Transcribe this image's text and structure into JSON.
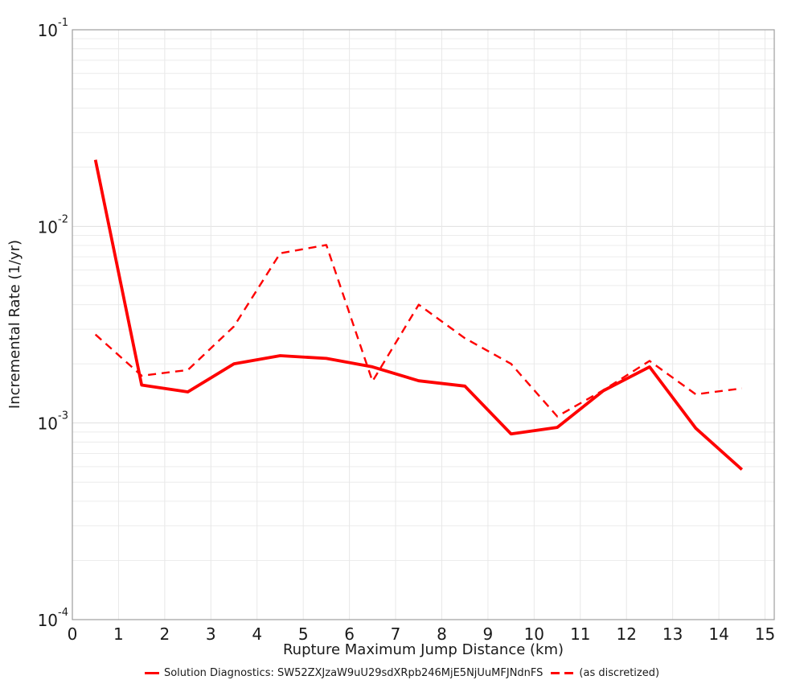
{
  "chart_data": {
    "type": "line",
    "title": "",
    "xlabel": "Rupture Maximum Jump Distance (km)",
    "ylabel": "Incremental Rate (1/yr)",
    "xlim": [
      0,
      15.2
    ],
    "ylim": [
      0.0001,
      0.1
    ],
    "yscale": "log",
    "grid": true,
    "legend_position": "bottom-center",
    "x_ticks": [
      0,
      1,
      2,
      3,
      4,
      5,
      6,
      7,
      8,
      9,
      10,
      11,
      12,
      13,
      14,
      15
    ],
    "y_ticks": [
      {
        "base": "10",
        "exp": "-1",
        "value": 0.1
      },
      {
        "base": "10",
        "exp": "-2",
        "value": 0.01
      },
      {
        "base": "10",
        "exp": "-3",
        "value": 0.001
      },
      {
        "base": "10",
        "exp": "-4",
        "value": 0.0001
      }
    ],
    "x": [
      0.5,
      1.5,
      2.5,
      3.5,
      4.5,
      5.5,
      6.5,
      7.5,
      8.5,
      9.5,
      10.5,
      11.5,
      12.5,
      13.5,
      14.5
    ],
    "series": [
      {
        "name": "Solution Diagnostics: SW52ZXJzaW9uU29sdXRpb246MjE5NjUuMFJNdnFS",
        "style": "solid",
        "color": "#fe0000",
        "values": [
          0.0218,
          0.00156,
          0.00144,
          0.002,
          0.0022,
          0.00213,
          0.00193,
          0.00164,
          0.00154,
          0.00088,
          0.00095,
          0.00146,
          0.00193,
          0.00094,
          0.00058
        ]
      },
      {
        "name": "(as discretized)",
        "style": "dashed",
        "color": "#fe0000",
        "values": [
          0.00282,
          0.00174,
          0.00186,
          0.0031,
          0.0073,
          0.00805,
          0.00163,
          0.004,
          0.0027,
          0.002,
          0.00108,
          0.00147,
          0.00207,
          0.0014,
          0.0015
        ]
      }
    ]
  },
  "colors": {
    "grid_minor": "#ececec",
    "grid_major": "#e0e0e0",
    "grid_vertical": "#e8e8e8",
    "plot_border": "#9e9e9e",
    "text": "#1a1a1a",
    "background": "#ffffff"
  }
}
